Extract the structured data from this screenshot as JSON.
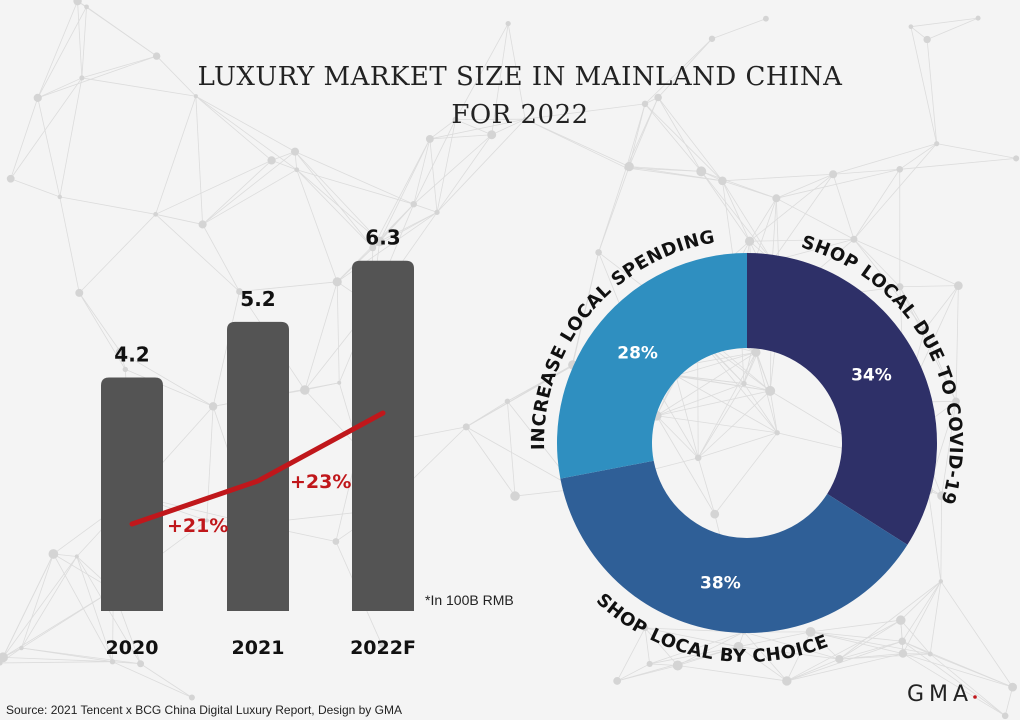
{
  "title_line1": "LUXURY MARKET SIZE IN MAINLAND CHINA",
  "title_line2": "FOR 2022",
  "source": "Source: 2021 Tencent x BCG China Digital Luxury Report, Design by GMA",
  "logo": "GMA",
  "colors": {
    "bar": "#545454",
    "line": "#c0171b",
    "navy": "#2e3068",
    "mid_blue": "#2f5f97",
    "light_blue": "#2f8fc0"
  },
  "chart_data": [
    {
      "type": "bar",
      "categories": [
        "2020",
        "2021",
        "2022F"
      ],
      "values": [
        4.2,
        5.2,
        6.3
      ],
      "data_labels": [
        "4.2",
        "5.2",
        "6.3"
      ],
      "note": "*In 100B RMB",
      "growth_line": {
        "labels": [
          "+21%",
          "+23%"
        ],
        "color": "#c0171b"
      }
    },
    {
      "type": "pie",
      "donut": true,
      "slices": [
        {
          "label": "SHOP LOCAL DUE TO COVID-19",
          "value": 34,
          "text": "34%",
          "color": "#2e3068"
        },
        {
          "label": "SHOP LOCAL BY CHOICE",
          "value": 38,
          "text": "38%",
          "color": "#2f5f97"
        },
        {
          "label": "INCREASE LOCAL SPENDING",
          "value": 28,
          "text": "28%",
          "color": "#2f8fc0"
        }
      ]
    }
  ]
}
